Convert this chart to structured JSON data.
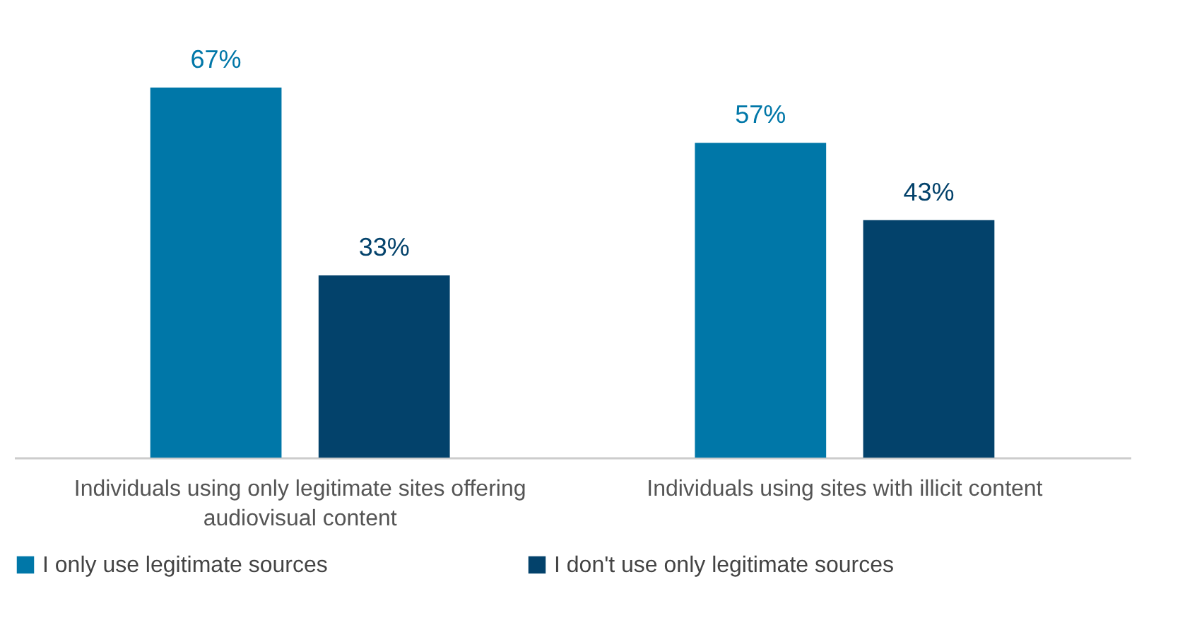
{
  "chart_data": {
    "type": "bar",
    "categories": [
      "Individuals using only legitimate sites offering audiovisual content",
      "Individuals using sites with illicit content"
    ],
    "series": [
      {
        "name": "I only use legitimate sources",
        "color": "#0077a8",
        "values": [
          67,
          57
        ],
        "value_labels": [
          "67%",
          "57%"
        ]
      },
      {
        "name": "I don't use only legitimate sources",
        "color": "#03426b",
        "values": [
          33,
          43
        ],
        "value_labels": [
          "33%",
          "43%"
        ]
      }
    ],
    "legend": "bottom left",
    "grid": false
  }
}
